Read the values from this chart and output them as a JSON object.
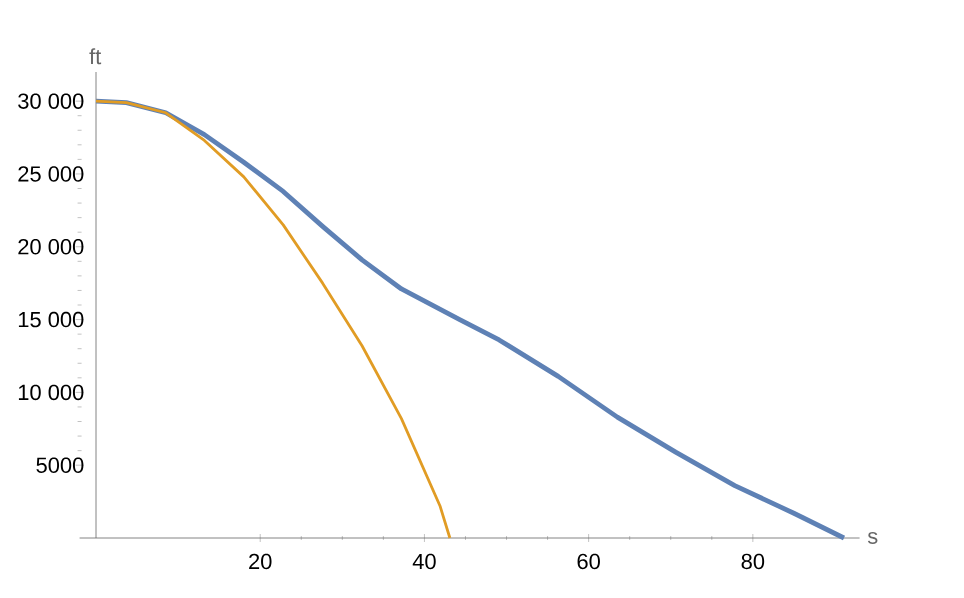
{
  "chart_data": {
    "type": "line",
    "xlabel": "s",
    "ylabel": "ft",
    "xlim": [
      -2,
      93
    ],
    "ylim": [
      0,
      32000
    ],
    "xticks": [
      20,
      40,
      60,
      80
    ],
    "yticks": [
      5000,
      {
        "value": 10000,
        "label": "10 000"
      },
      {
        "value": 15000,
        "label": "15 000"
      },
      {
        "value": 20000,
        "label": "20 000"
      },
      {
        "value": 25000,
        "label": "25 000"
      },
      {
        "value": 30000,
        "label": "30 000"
      }
    ],
    "series": [
      {
        "color": "#5e81b5",
        "x": [
          0,
          3.7,
          8.5,
          13.2,
          18,
          22.8,
          27.6,
          32.4,
          37.2,
          44.3,
          49.1,
          56.3,
          63.5,
          70.6,
          77.8,
          85,
          91.1
        ],
        "values": [
          30000,
          29900,
          29200,
          27700,
          25800,
          23800,
          21400,
          19100,
          17100,
          15000,
          13600,
          11100,
          8300,
          5900,
          3600,
          1700,
          0
        ]
      },
      {
        "color": "#e19c24",
        "x": [
          0,
          3.7,
          8.5,
          13.2,
          18,
          22.8,
          27.6,
          32.4,
          37.2,
          41.9,
          43.1
        ],
        "values": [
          30000,
          29900,
          29200,
          27300,
          24800,
          21500,
          17500,
          13200,
          8200,
          2200,
          0
        ]
      }
    ],
    "marker": "none",
    "line_style": "solid",
    "grid": false
  }
}
